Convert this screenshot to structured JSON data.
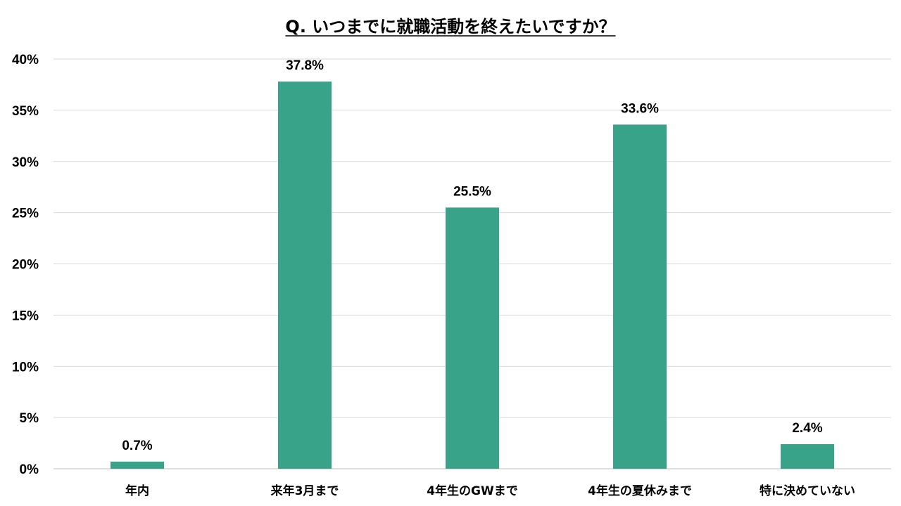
{
  "chart_data": {
    "type": "bar",
    "title": "Q. いつまでに就職活動を終えたいですか？",
    "categories": [
      "年内",
      "来年3月まで",
      "4年生のGWまで",
      "4年生の夏休みまで",
      "特に決めていない"
    ],
    "values": [
      0.7,
      37.8,
      25.5,
      33.6,
      2.4
    ],
    "value_labels": [
      "0.7%",
      "37.8%",
      "25.5%",
      "33.6%",
      "2.4%"
    ],
    "ylim": [
      0,
      40
    ],
    "yticks": [
      0,
      5,
      10,
      15,
      20,
      25,
      30,
      35,
      40
    ],
    "ytick_labels": [
      "0%",
      "5%",
      "10%",
      "15%",
      "20%",
      "25%",
      "30%",
      "35%",
      "40%"
    ],
    "xlabel": "",
    "ylabel": "",
    "grid": true,
    "legend": "none",
    "bar_color": "#38a389"
  }
}
